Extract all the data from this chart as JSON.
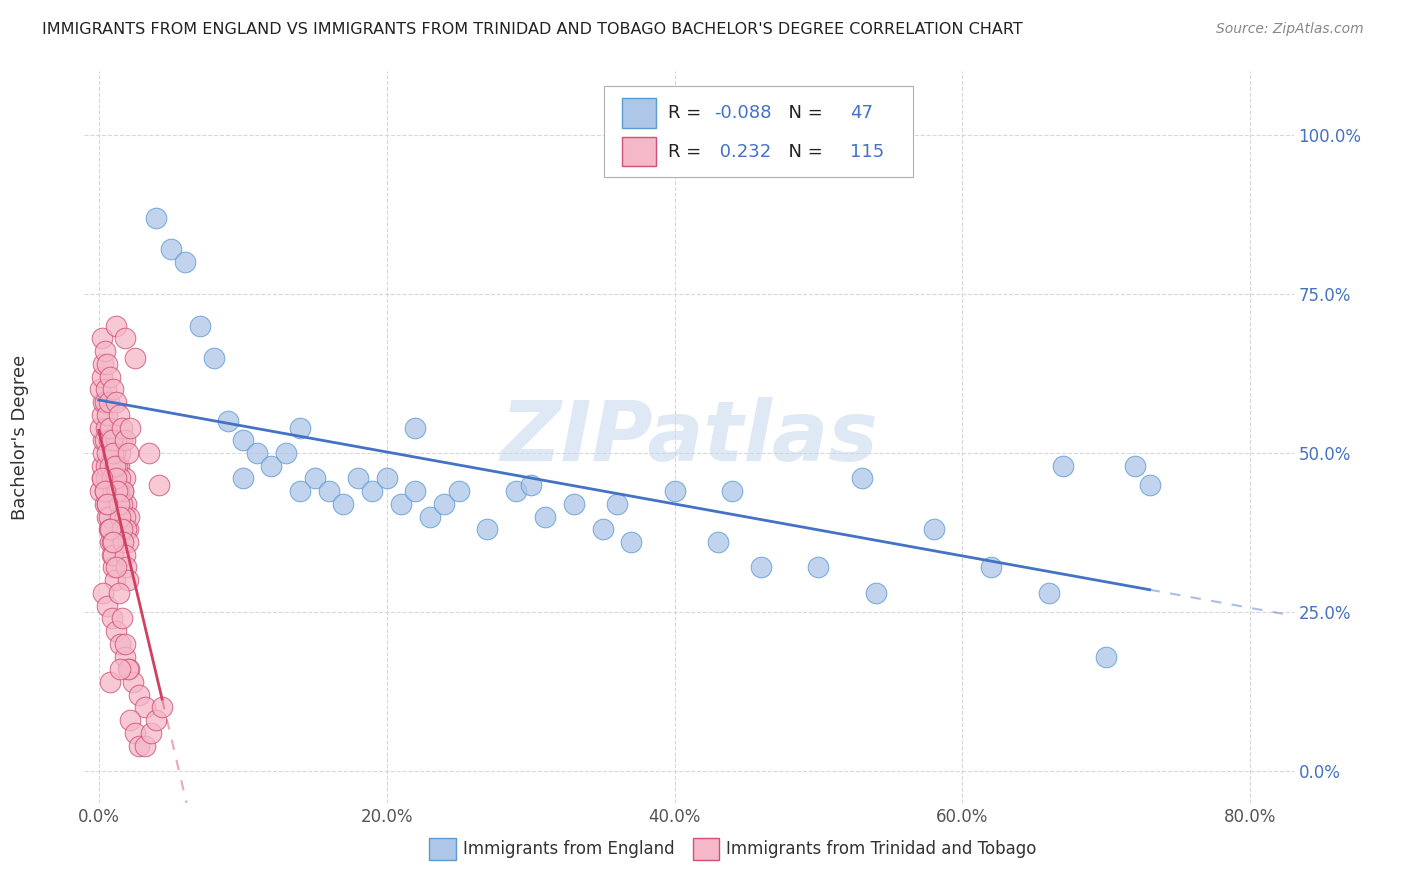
{
  "title": "IMMIGRANTS FROM ENGLAND VS IMMIGRANTS FROM TRINIDAD AND TOBAGO BACHELOR'S DEGREE CORRELATION CHART",
  "source": "Source: ZipAtlas.com",
  "ylabel": "Bachelor's Degree",
  "x_ticks_labels": [
    "0.0%",
    "20.0%",
    "40.0%",
    "60.0%",
    "80.0%"
  ],
  "x_tick_vals": [
    0.0,
    0.2,
    0.4,
    0.6,
    0.8
  ],
  "y_ticks_labels": [
    "0.0%",
    "25.0%",
    "50.0%",
    "75.0%",
    "100.0%"
  ],
  "y_tick_vals": [
    0.0,
    0.25,
    0.5,
    0.75,
    1.0
  ],
  "xlim": [
    -0.01,
    0.83
  ],
  "ylim": [
    -0.05,
    1.1
  ],
  "legend_england": "Immigrants from England",
  "legend_tt": "Immigrants from Trinidad and Tobago",
  "R_england": -0.088,
  "N_england": 47,
  "R_tt": 0.232,
  "N_tt": 115,
  "england_fill": "#aec6e8",
  "england_edge": "#5b9bd5",
  "tt_fill": "#f4b8c8",
  "tt_edge": "#d05078",
  "england_line_color": "#4472c4",
  "tt_line_color": "#d04060",
  "watermark_text": "ZIPatlas",
  "background_color": "#ffffff",
  "grid_color": "#d8d8d8",
  "england_x": [
    0.04,
    0.05,
    0.06,
    0.07,
    0.08,
    0.09,
    0.1,
    0.11,
    0.12,
    0.13,
    0.14,
    0.15,
    0.16,
    0.17,
    0.18,
    0.19,
    0.2,
    0.21,
    0.22,
    0.23,
    0.24,
    0.25,
    0.27,
    0.29,
    0.31,
    0.33,
    0.35,
    0.37,
    0.4,
    0.43,
    0.46,
    0.5,
    0.54,
    0.58,
    0.62,
    0.66,
    0.7,
    0.73,
    0.1,
    0.14,
    0.22,
    0.3,
    0.36,
    0.44,
    0.53,
    0.67,
    0.72
  ],
  "england_y": [
    0.87,
    0.82,
    0.8,
    0.7,
    0.65,
    0.55,
    0.52,
    0.5,
    0.48,
    0.5,
    0.54,
    0.46,
    0.44,
    0.42,
    0.46,
    0.44,
    0.46,
    0.42,
    0.44,
    0.4,
    0.42,
    0.44,
    0.38,
    0.44,
    0.4,
    0.42,
    0.38,
    0.36,
    0.44,
    0.36,
    0.32,
    0.32,
    0.28,
    0.38,
    0.32,
    0.28,
    0.18,
    0.45,
    0.46,
    0.44,
    0.54,
    0.45,
    0.42,
    0.44,
    0.46,
    0.48,
    0.48
  ],
  "tt_x": [
    0.001,
    0.002,
    0.002,
    0.003,
    0.003,
    0.004,
    0.004,
    0.005,
    0.005,
    0.006,
    0.006,
    0.007,
    0.007,
    0.008,
    0.008,
    0.009,
    0.009,
    0.01,
    0.01,
    0.011,
    0.012,
    0.013,
    0.014,
    0.015,
    0.016,
    0.017,
    0.018,
    0.019,
    0.02,
    0.021,
    0.001,
    0.002,
    0.003,
    0.004,
    0.005,
    0.006,
    0.007,
    0.008,
    0.009,
    0.01,
    0.011,
    0.012,
    0.013,
    0.014,
    0.015,
    0.016,
    0.017,
    0.018,
    0.019,
    0.02,
    0.001,
    0.002,
    0.003,
    0.004,
    0.005,
    0.006,
    0.007,
    0.008,
    0.009,
    0.01,
    0.011,
    0.012,
    0.013,
    0.014,
    0.015,
    0.016,
    0.017,
    0.018,
    0.019,
    0.02,
    0.002,
    0.004,
    0.006,
    0.008,
    0.01,
    0.012,
    0.014,
    0.016,
    0.018,
    0.02,
    0.003,
    0.006,
    0.009,
    0.012,
    0.015,
    0.018,
    0.021,
    0.024,
    0.028,
    0.032,
    0.002,
    0.004,
    0.006,
    0.008,
    0.01,
    0.012,
    0.014,
    0.016,
    0.018,
    0.02,
    0.022,
    0.025,
    0.028,
    0.032,
    0.036,
    0.04,
    0.044,
    0.022,
    0.035,
    0.042,
    0.012,
    0.018,
    0.025,
    0.008,
    0.015
  ],
  "tt_y": [
    0.44,
    0.46,
    0.48,
    0.5,
    0.52,
    0.42,
    0.44,
    0.46,
    0.48,
    0.4,
    0.42,
    0.38,
    0.4,
    0.36,
    0.38,
    0.34,
    0.36,
    0.32,
    0.34,
    0.3,
    0.44,
    0.46,
    0.48,
    0.5,
    0.52,
    0.44,
    0.46,
    0.42,
    0.38,
    0.4,
    0.54,
    0.56,
    0.58,
    0.52,
    0.54,
    0.5,
    0.52,
    0.48,
    0.46,
    0.44,
    0.5,
    0.52,
    0.48,
    0.44,
    0.46,
    0.42,
    0.44,
    0.4,
    0.38,
    0.36,
    0.6,
    0.62,
    0.64,
    0.58,
    0.6,
    0.56,
    0.58,
    0.54,
    0.52,
    0.5,
    0.48,
    0.46,
    0.44,
    0.42,
    0.4,
    0.38,
    0.36,
    0.34,
    0.32,
    0.3,
    0.68,
    0.66,
    0.64,
    0.62,
    0.6,
    0.58,
    0.56,
    0.54,
    0.52,
    0.5,
    0.28,
    0.26,
    0.24,
    0.22,
    0.2,
    0.18,
    0.16,
    0.14,
    0.12,
    0.1,
    0.46,
    0.44,
    0.42,
    0.38,
    0.36,
    0.32,
    0.28,
    0.24,
    0.2,
    0.16,
    0.08,
    0.06,
    0.04,
    0.04,
    0.06,
    0.08,
    0.1,
    0.54,
    0.5,
    0.45,
    0.7,
    0.68,
    0.65,
    0.14,
    0.16
  ]
}
